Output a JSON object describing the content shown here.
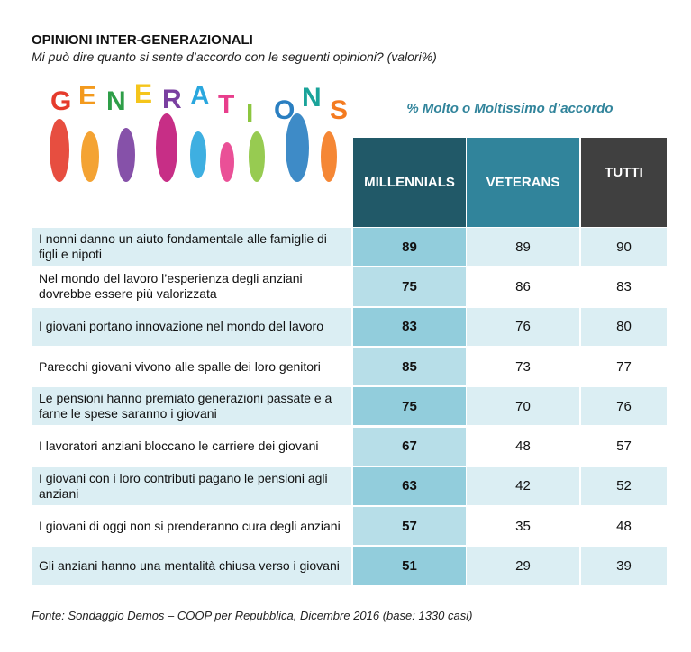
{
  "header": {
    "title": "OPINIONI INTER-GENERAZIONALI",
    "subtitle": "Mi può dire quanto si sente d’accordo con le seguenti opinioni? (valori%)"
  },
  "logo_letters": [
    "G",
    "E",
    "N",
    "E",
    "R",
    "A",
    "T",
    "I",
    "O",
    "N",
    "S"
  ],
  "table": {
    "measure": "% Molto o Moltissimo d’accordo",
    "columns": [
      "MILLENNIALS",
      "VETERANS",
      "TUTTI"
    ],
    "rows": [
      {
        "label": "I nonni danno un aiuto fondamentale alle famiglie di figli e nipoti",
        "values": [
          89,
          89,
          90
        ]
      },
      {
        "label": "Nel mondo del lavoro l’esperienza degli anziani dovrebbe essere più valorizzata",
        "values": [
          75,
          86,
          83
        ]
      },
      {
        "label": "I giovani portano innovazione nel mondo del lavoro",
        "values": [
          83,
          76,
          80
        ]
      },
      {
        "label": "Parecchi giovani vivono alle spalle dei loro genitori",
        "values": [
          85,
          73,
          77
        ]
      },
      {
        "label": "Le pensioni hanno premiato generazioni passate e a farne le spese saranno i giovani",
        "values": [
          75,
          70,
          76
        ]
      },
      {
        "label": "I lavoratori anziani bloccano le carriere dei giovani",
        "values": [
          67,
          48,
          57
        ]
      },
      {
        "label": "I giovani con i loro contributi pagano le pensioni agli anziani",
        "values": [
          63,
          42,
          52
        ]
      },
      {
        "label": "I giovani di oggi non si prenderanno cura degli anziani",
        "values": [
          57,
          35,
          48
        ]
      },
      {
        "label": "Gli anziani hanno una mentalità chiusa verso i giovani",
        "values": [
          51,
          29,
          39
        ]
      }
    ]
  },
  "footer": {
    "source": "Fonte: Sondaggio Demos – COOP per Repubblica, Dicembre 2016 (base: 1330 casi)"
  }
}
